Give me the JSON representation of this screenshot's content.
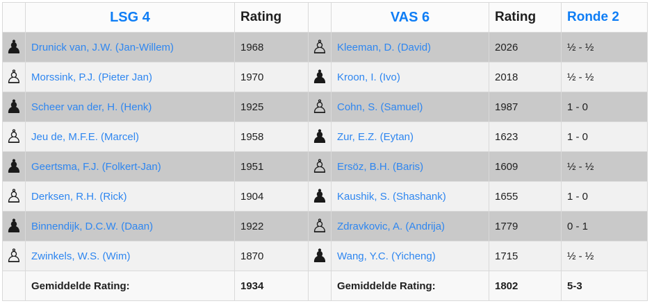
{
  "match": {
    "left_team": {
      "name": "LSG 4",
      "rating_header": "Rating",
      "average_label": "Gemiddelde Rating:",
      "average_rating": "1934"
    },
    "right_team": {
      "name": "VAS 6",
      "rating_header": "Rating",
      "average_label": "Gemiddelde Rating:",
      "average_rating": "1802"
    },
    "round_header": "Ronde 2",
    "total_score": "5-3",
    "boards": [
      {
        "left": {
          "pawn": "black",
          "name": "Drunick van, J.W. (Jan-Willem)",
          "rating": "1968"
        },
        "right": {
          "pawn": "white",
          "name": "Kleeman, D. (David)",
          "rating": "2026"
        },
        "result": "½ - ½"
      },
      {
        "left": {
          "pawn": "white",
          "name": "Morssink, P.J. (Pieter Jan)",
          "rating": "1970"
        },
        "right": {
          "pawn": "black",
          "name": "Kroon, I. (Ivo)",
          "rating": "2018"
        },
        "result": "½ - ½"
      },
      {
        "left": {
          "pawn": "black",
          "name": "Scheer van der, H. (Henk)",
          "rating": "1925"
        },
        "right": {
          "pawn": "white",
          "name": "Cohn, S. (Samuel)",
          "rating": "1987"
        },
        "result": "1 - 0"
      },
      {
        "left": {
          "pawn": "white",
          "name": "Jeu de, M.F.E. (Marcel)",
          "rating": "1958"
        },
        "right": {
          "pawn": "black",
          "name": "Zur, E.Z. (Eytan)",
          "rating": "1623"
        },
        "result": "1 - 0"
      },
      {
        "left": {
          "pawn": "black",
          "name": "Geertsma, F.J. (Folkert-Jan)",
          "rating": "1951"
        },
        "right": {
          "pawn": "white",
          "name": "Ersöz, B.H. (Baris)",
          "rating": "1609"
        },
        "result": "½ - ½"
      },
      {
        "left": {
          "pawn": "white",
          "name": "Derksen, R.H. (Rick)",
          "rating": "1904"
        },
        "right": {
          "pawn": "black",
          "name": "Kaushik, S. (Shashank)",
          "rating": "1655"
        },
        "result": "1 - 0"
      },
      {
        "left": {
          "pawn": "black",
          "name": "Binnendijk, D.C.W. (Daan)",
          "rating": "1922"
        },
        "right": {
          "pawn": "white",
          "name": "Zdravkovic, A. (Andrija)",
          "rating": "1779"
        },
        "result": "0 - 1"
      },
      {
        "left": {
          "pawn": "white",
          "name": "Zwinkels, W.S. (Wim)",
          "rating": "1870"
        },
        "right": {
          "pawn": "black",
          "name": "Wang, Y.C. (Yicheng)",
          "rating": "1715"
        },
        "result": "½ - ½"
      }
    ]
  },
  "icons": {
    "black_pawn": "♟",
    "white_pawn": "♙"
  },
  "colors": {
    "stripe_dark": "#c9c9c9",
    "stripe_light": "#f1f1f1",
    "header_bg": "#fbfbfb",
    "footer_bg": "#f8f8f8",
    "border": "#d9d9d9",
    "header_link": "#0e7df5",
    "player_link": "#2e86f0",
    "text": "#1f1f1f",
    "page_bg": "#ffffff"
  }
}
